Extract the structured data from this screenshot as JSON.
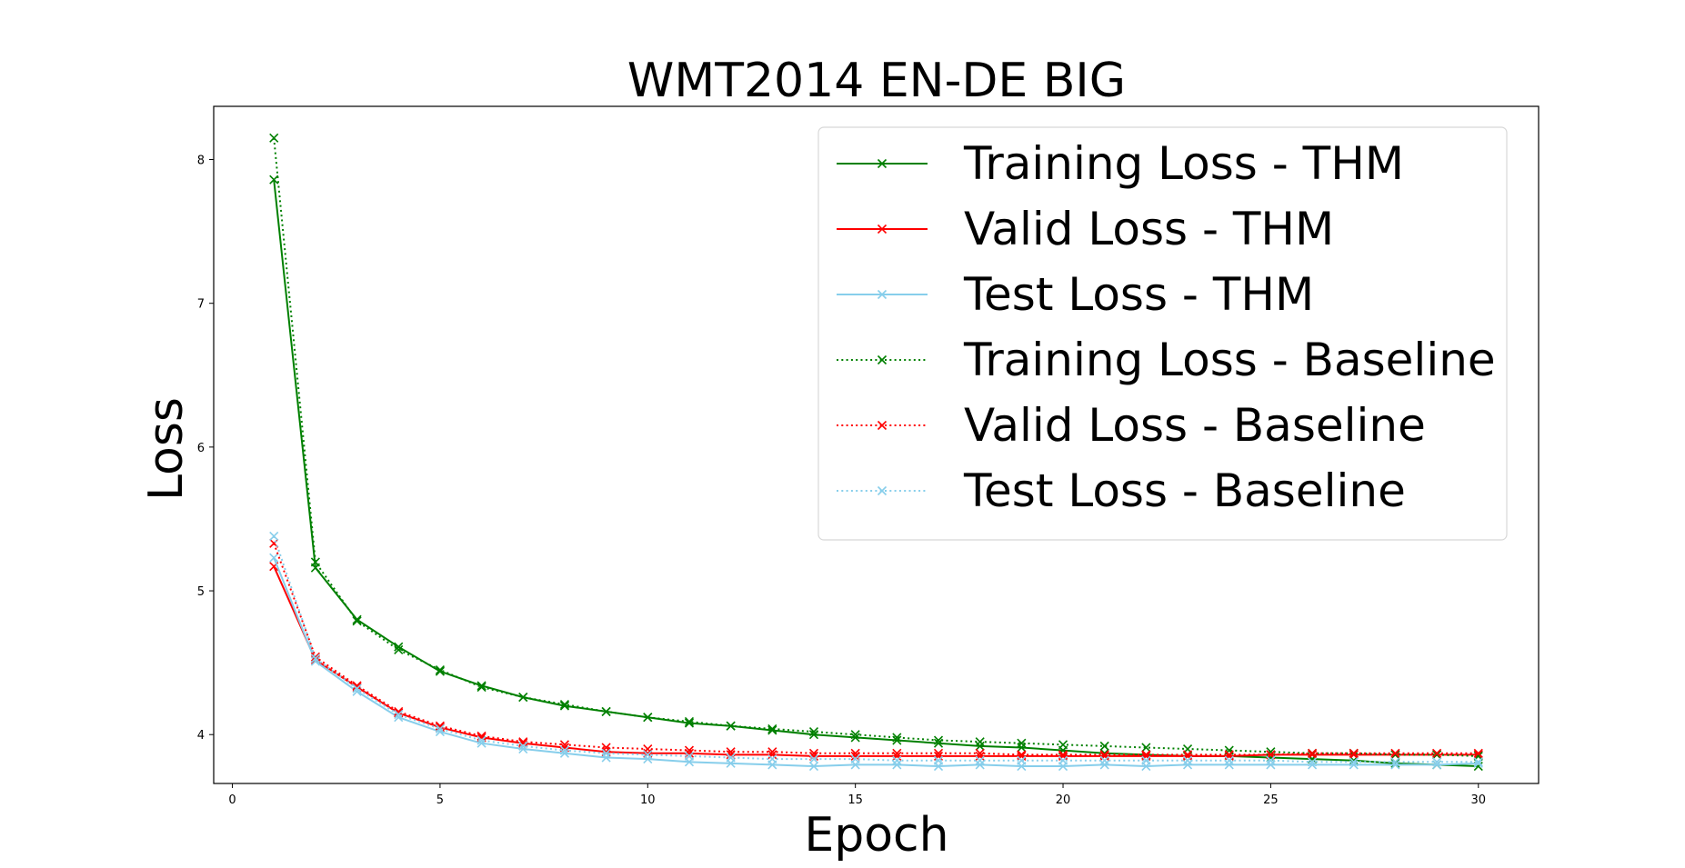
{
  "chart_data": {
    "type": "line",
    "title": "WMT2014 EN-DE BIG",
    "xlabel": "Epoch",
    "ylabel": "Loss",
    "xlim": [
      -0.45,
      31.45
    ],
    "ylim": [
      3.66,
      8.37
    ],
    "xticks": [
      0,
      5,
      10,
      15,
      20,
      25,
      30
    ],
    "yticks": [
      4,
      5,
      6,
      7,
      8
    ],
    "grid": false,
    "legend_position": "top-right",
    "x": [
      1,
      2,
      3,
      4,
      5,
      6,
      7,
      8,
      9,
      10,
      11,
      12,
      13,
      14,
      15,
      16,
      17,
      18,
      19,
      20,
      21,
      22,
      23,
      24,
      25,
      26,
      27,
      28,
      29,
      30
    ],
    "series": [
      {
        "name": "Training Loss - THM",
        "color": "#008000",
        "linestyle": "solid",
        "marker": "x",
        "values": [
          7.86,
          5.16,
          4.8,
          4.61,
          4.44,
          4.34,
          4.26,
          4.2,
          4.16,
          4.12,
          4.08,
          4.06,
          4.03,
          4.0,
          3.98,
          3.96,
          3.94,
          3.92,
          3.91,
          3.89,
          3.87,
          3.86,
          3.85,
          3.85,
          3.84,
          3.83,
          3.82,
          3.8,
          3.79,
          3.78
        ]
      },
      {
        "name": "Valid Loss - THM",
        "color": "#ff0000",
        "linestyle": "solid",
        "marker": "x",
        "values": [
          5.17,
          4.52,
          4.33,
          4.15,
          4.05,
          3.98,
          3.94,
          3.91,
          3.88,
          3.87,
          3.87,
          3.86,
          3.86,
          3.85,
          3.85,
          3.85,
          3.85,
          3.85,
          3.85,
          3.85,
          3.85,
          3.85,
          3.85,
          3.85,
          3.86,
          3.86,
          3.86,
          3.86,
          3.86,
          3.86
        ]
      },
      {
        "name": "Test Loss - THM",
        "color": "#87ceeb",
        "linestyle": "solid",
        "marker": "x",
        "values": [
          5.23,
          4.51,
          4.3,
          4.12,
          4.02,
          3.94,
          3.9,
          3.87,
          3.84,
          3.83,
          3.81,
          3.8,
          3.79,
          3.78,
          3.79,
          3.79,
          3.78,
          3.79,
          3.78,
          3.78,
          3.79,
          3.78,
          3.79,
          3.79,
          3.79,
          3.79,
          3.79,
          3.79,
          3.79,
          3.8
        ]
      },
      {
        "name": "Training Loss - Baseline",
        "color": "#008000",
        "linestyle": "dotted",
        "marker": "x",
        "values": [
          8.15,
          5.2,
          4.79,
          4.59,
          4.45,
          4.33,
          4.26,
          4.21,
          4.16,
          4.12,
          4.09,
          4.06,
          4.04,
          4.02,
          4.0,
          3.98,
          3.96,
          3.95,
          3.94,
          3.93,
          3.92,
          3.91,
          3.9,
          3.89,
          3.88,
          3.87,
          3.87,
          3.86,
          3.86,
          3.85
        ]
      },
      {
        "name": "Valid Loss - Baseline",
        "color": "#ff0000",
        "linestyle": "dotted",
        "marker": "x",
        "values": [
          5.33,
          4.54,
          4.34,
          4.16,
          4.06,
          3.99,
          3.95,
          3.93,
          3.91,
          3.9,
          3.89,
          3.88,
          3.88,
          3.87,
          3.87,
          3.87,
          3.87,
          3.87,
          3.86,
          3.86,
          3.86,
          3.86,
          3.86,
          3.86,
          3.86,
          3.87,
          3.87,
          3.87,
          3.87,
          3.87
        ]
      },
      {
        "name": "Test Loss - Baseline",
        "color": "#87ceeb",
        "linestyle": "dotted",
        "marker": "x",
        "values": [
          5.38,
          4.53,
          4.32,
          4.14,
          4.04,
          3.96,
          3.92,
          3.89,
          3.87,
          3.86,
          3.85,
          3.84,
          3.83,
          3.83,
          3.83,
          3.82,
          3.82,
          3.82,
          3.82,
          3.82,
          3.82,
          3.82,
          3.82,
          3.82,
          3.82,
          3.81,
          3.81,
          3.81,
          3.81,
          3.81
        ]
      }
    ]
  }
}
